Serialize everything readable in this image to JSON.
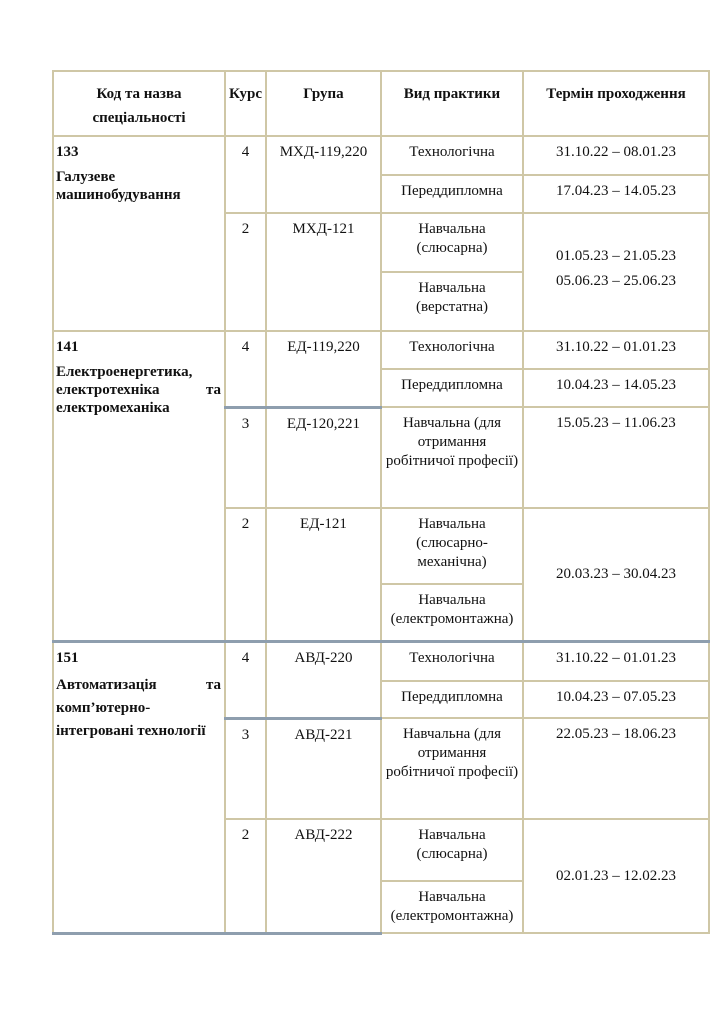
{
  "table": {
    "headers": {
      "specialty": "Код та назва спеціальності",
      "course": "Курс",
      "group": "Група",
      "practice": "Вид практики",
      "term": "Термін проходження"
    },
    "sections": [
      {
        "code": "133",
        "name": "Галузеве машинобудування",
        "rows": [
          {
            "course": "4",
            "group": "МХД-119,220",
            "practices": [
              "Технологічна",
              "Переддипломна"
            ],
            "terms": [
              "31.10.22 – 08.01.23",
              "17.04.23 – 14.05.23"
            ]
          },
          {
            "course": "2",
            "group": "МХД-121",
            "practices": [
              "Навчальна (слюсарна)",
              "Навчальна (верстатна)"
            ],
            "terms": [
              "01.05.23 – 21.05.23",
              "05.06.23 – 25.06.23"
            ]
          }
        ]
      },
      {
        "code": "141",
        "name": "Електроенергетика, електротехніка та електромеханіка",
        "rows": [
          {
            "course": "4",
            "group": "ЕД-119,220",
            "practices": [
              "Технологічна",
              "Переддипломна"
            ],
            "terms": [
              "31.10.22 – 01.01.23",
              "10.04.23 – 14.05.23"
            ]
          },
          {
            "course": "3",
            "group": "ЕД-120,221",
            "practices": [
              "Навчальна (для отримання робітничої професії)"
            ],
            "terms": [
              "15.05.23 – 11.06.23"
            ]
          },
          {
            "course": "2",
            "group": "ЕД-121",
            "practices": [
              "Навчальна (слюсарно-механічна)",
              "Навчальна (електромонтажна)"
            ],
            "terms": [
              "20.03.23 – 30.04.23"
            ]
          }
        ]
      },
      {
        "code": "151",
        "name": "Автоматизація та комп’ютерно-інтегровані технології",
        "rows": [
          {
            "course": "4",
            "group": "АВД-220",
            "practices": [
              "Технологічна",
              "Переддипломна"
            ],
            "terms": [
              "31.10.22 – 01.01.23",
              "10.04.23 – 07.05.23"
            ]
          },
          {
            "course": "3",
            "group": "АВД-221",
            "practices": [
              "Навчальна (для отримання робітничої професії)"
            ],
            "terms": [
              "22.05.23 – 18.06.23"
            ]
          },
          {
            "course": "2",
            "group": "АВД-222",
            "practices": [
              "Навчальна (слюсарна)",
              "Навчальна (електромонтажна)"
            ],
            "terms": [
              "02.01.23 – 12.02.23"
            ]
          }
        ]
      }
    ]
  }
}
